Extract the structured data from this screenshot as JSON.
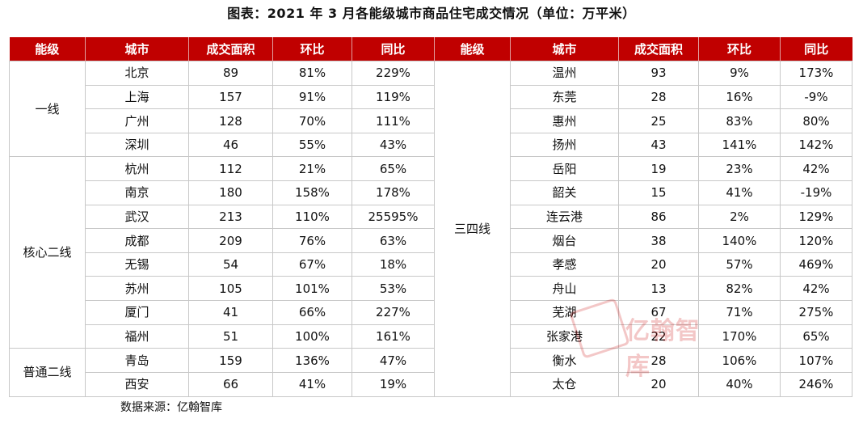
{
  "title": "图表：2021 年 3 月各能级城市商品住宅成交情况（单位：万平米）",
  "headers": [
    "能级",
    "城市",
    "成交面积",
    "环比",
    "同比",
    "能级",
    "城市",
    "成交面积",
    "环比",
    "同比"
  ],
  "left_groups": [
    {
      "tier": "一线",
      "rows": [
        {
          "city": "北京",
          "area": "89",
          "mom": "81%",
          "yoy": "229%"
        },
        {
          "city": "上海",
          "area": "157",
          "mom": "91%",
          "yoy": "119%"
        },
        {
          "city": "广州",
          "area": "128",
          "mom": "70%",
          "yoy": "111%"
        },
        {
          "city": "深圳",
          "area": "46",
          "mom": "55%",
          "yoy": "43%"
        }
      ]
    },
    {
      "tier": "核心二线",
      "rows": [
        {
          "city": "杭州",
          "area": "112",
          "mom": "21%",
          "yoy": "65%"
        },
        {
          "city": "南京",
          "area": "180",
          "mom": "158%",
          "yoy": "178%"
        },
        {
          "city": "武汉",
          "area": "213",
          "mom": "110%",
          "yoy": "25595%"
        },
        {
          "city": "成都",
          "area": "209",
          "mom": "76%",
          "yoy": "63%"
        },
        {
          "city": "无锡",
          "area": "54",
          "mom": "67%",
          "yoy": "18%"
        },
        {
          "city": "苏州",
          "area": "105",
          "mom": "101%",
          "yoy": "53%"
        },
        {
          "city": "厦门",
          "area": "41",
          "mom": "66%",
          "yoy": "227%"
        },
        {
          "city": "福州",
          "area": "51",
          "mom": "100%",
          "yoy": "161%"
        }
      ]
    },
    {
      "tier": "普通二线",
      "rows": [
        {
          "city": "青岛",
          "area": "159",
          "mom": "136%",
          "yoy": "47%"
        },
        {
          "city": "西安",
          "area": "66",
          "mom": "41%",
          "yoy": "19%"
        }
      ]
    }
  ],
  "right_group": {
    "tier": "三四线",
    "rows": [
      {
        "city": "温州",
        "area": "93",
        "mom": "9%",
        "yoy": "173%"
      },
      {
        "city": "东莞",
        "area": "28",
        "mom": "16%",
        "yoy": "-9%"
      },
      {
        "city": "惠州",
        "area": "25",
        "mom": "83%",
        "yoy": "80%"
      },
      {
        "city": "扬州",
        "area": "43",
        "mom": "141%",
        "yoy": "142%"
      },
      {
        "city": "岳阳",
        "area": "19",
        "mom": "23%",
        "yoy": "42%"
      },
      {
        "city": "韶关",
        "area": "15",
        "mom": "41%",
        "yoy": "-19%"
      },
      {
        "city": "连云港",
        "area": "86",
        "mom": "2%",
        "yoy": "129%"
      },
      {
        "city": "烟台",
        "area": "38",
        "mom": "140%",
        "yoy": "120%"
      },
      {
        "city": "孝感",
        "area": "20",
        "mom": "57%",
        "yoy": "469%"
      },
      {
        "city": "舟山",
        "area": "13",
        "mom": "82%",
        "yoy": "42%"
      },
      {
        "city": "芜湖",
        "area": "67",
        "mom": "71%",
        "yoy": "275%"
      },
      {
        "city": "张家港",
        "area": "22",
        "mom": "170%",
        "yoy": "65%"
      },
      {
        "city": "衡水",
        "area": "28",
        "mom": "106%",
        "yoy": "107%"
      },
      {
        "city": "太仓",
        "area": "20",
        "mom": "40%",
        "yoy": "246%"
      }
    ]
  },
  "source": "数据来源：亿翰智库",
  "watermark": {
    "text": "亿翰智库",
    "color": "#c00000"
  }
}
